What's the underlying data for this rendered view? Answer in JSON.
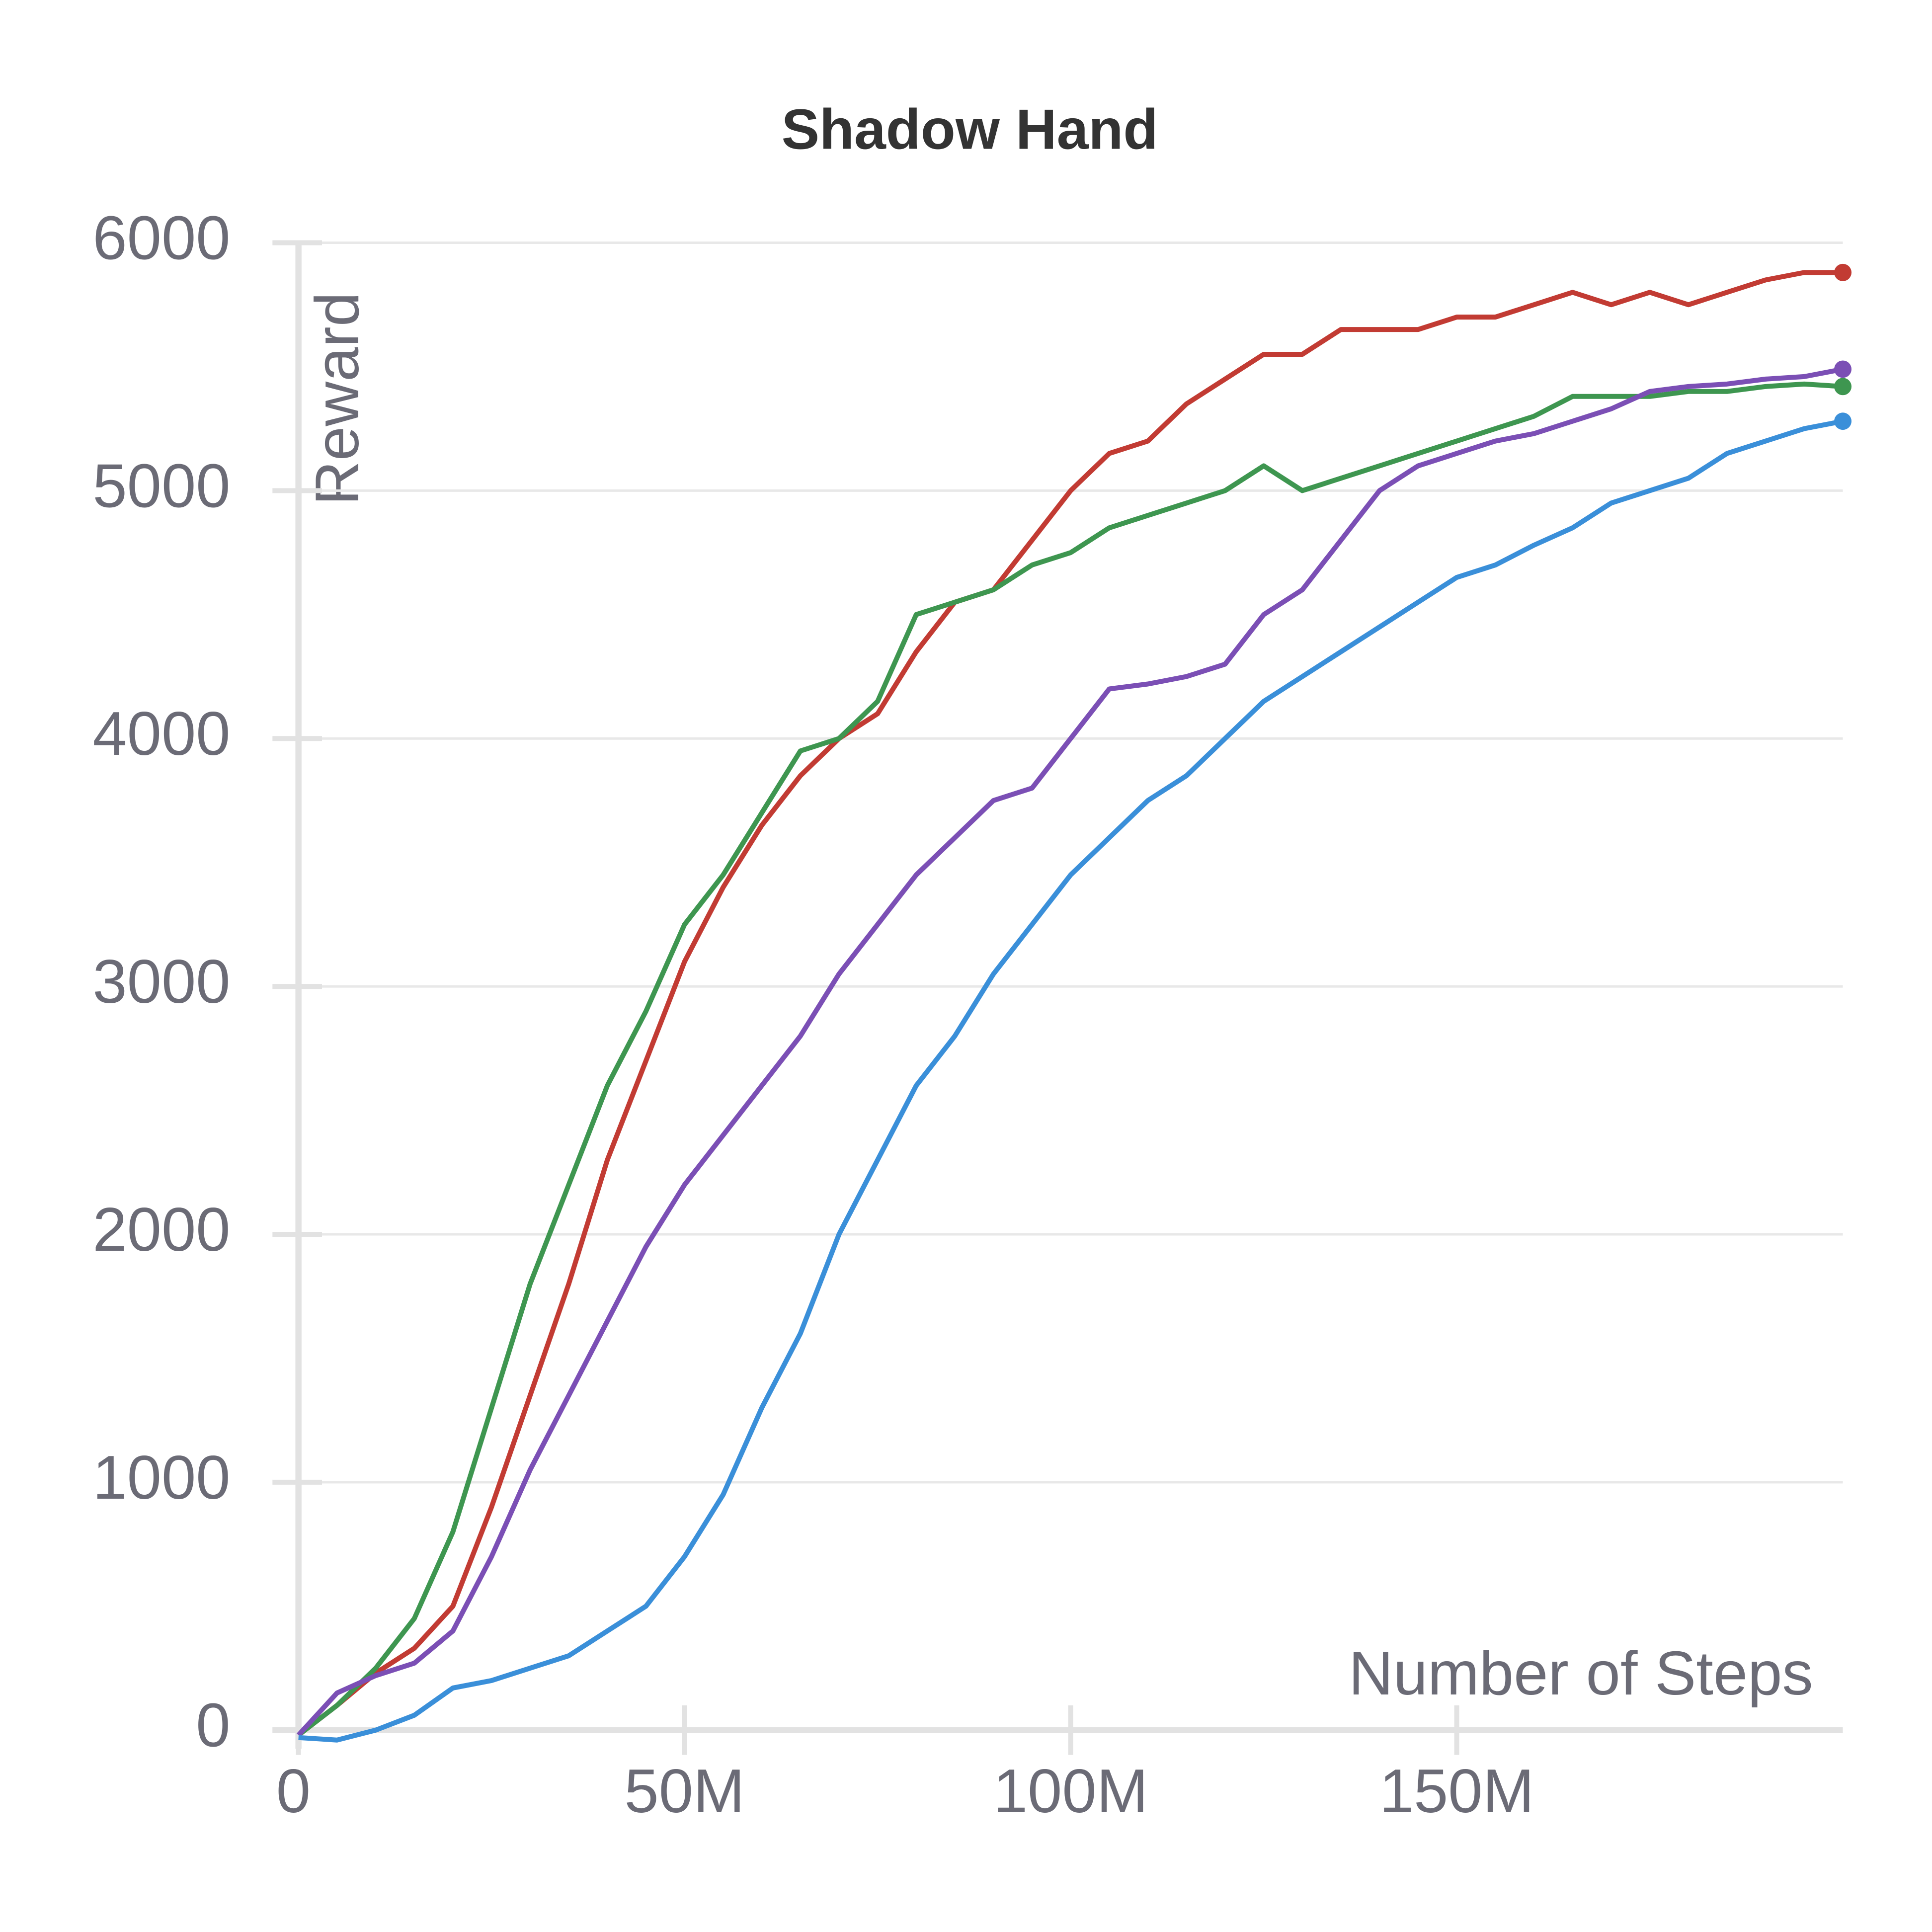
{
  "chart_data": {
    "type": "line",
    "title": "Shadow Hand",
    "x_label": "Number of Steps",
    "y_label": "Reward",
    "x": [
      0,
      5000000,
      10000000,
      15000000,
      20000000,
      25000000,
      30000000,
      35000000,
      40000000,
      45000000,
      50000000,
      55000000,
      60000000,
      65000000,
      70000000,
      75000000,
      80000000,
      85000000,
      90000000,
      95000000,
      100000000,
      105000000,
      110000000,
      115000000,
      120000000,
      125000000,
      130000000,
      135000000,
      140000000,
      145000000,
      150000000,
      155000000,
      160000000,
      165000000,
      170000000,
      175000000,
      180000000,
      185000000,
      190000000,
      195000000,
      200000000
    ],
    "series": [
      {
        "color": "#c23b33",
        "values": [
          -20,
          100,
          230,
          330,
          500,
          900,
          1350,
          1800,
          2300,
          2700,
          3100,
          3400,
          3650,
          3850,
          4000,
          4100,
          4350,
          4550,
          4600,
          4800,
          5000,
          5150,
          5200,
          5350,
          5450,
          5550,
          5550,
          5650,
          5650,
          5650,
          5700,
          5700,
          5750,
          5800,
          5750,
          5800,
          5750,
          5800,
          5850,
          5880,
          5880
        ]
      },
      {
        "color": "#3e9650",
        "values": [
          -20,
          100,
          250,
          450,
          800,
          1300,
          1800,
          2200,
          2600,
          2900,
          3250,
          3450,
          3700,
          3950,
          4000,
          4150,
          4500,
          4550,
          4600,
          4700,
          4750,
          4850,
          4900,
          4950,
          5000,
          5100,
          5000,
          5050,
          5100,
          5150,
          5200,
          5250,
          5300,
          5380,
          5380,
          5380,
          5400,
          5400,
          5420,
          5430,
          5420
        ]
      },
      {
        "color": "#7b4fb5",
        "values": [
          -20,
          150,
          220,
          270,
          400,
          700,
          1050,
          1350,
          1650,
          1950,
          2200,
          2400,
          2600,
          2800,
          3050,
          3250,
          3450,
          3600,
          3750,
          3800,
          4000,
          4200,
          4220,
          4250,
          4300,
          4500,
          4600,
          4800,
          5000,
          5100,
          5150,
          5200,
          5230,
          5280,
          5330,
          5400,
          5420,
          5430,
          5450,
          5460,
          5490
        ]
      },
      {
        "color": "#3a8fd9",
        "values": [
          -30,
          -40,
          0,
          60,
          170,
          200,
          250,
          300,
          400,
          500,
          700,
          950,
          1300,
          1600,
          2000,
          2300,
          2600,
          2800,
          3050,
          3250,
          3450,
          3600,
          3750,
          3850,
          4000,
          4150,
          4250,
          4350,
          4450,
          4550,
          4650,
          4700,
          4780,
          4850,
          4950,
          5000,
          5050,
          5150,
          5200,
          5250,
          5280
        ]
      }
    ],
    "xlim": [
      0,
      200000000
    ],
    "xticks": [
      0,
      {
        "value": 50000000,
        "label": "50M"
      },
      {
        "value": 100000000,
        "label": "100M"
      },
      {
        "value": 150000000,
        "label": "150M"
      }
    ],
    "ylim": [
      0,
      6000
    ],
    "yticks": [
      0,
      1000,
      2000,
      3000,
      4000,
      5000,
      6000
    ],
    "grid": true
  }
}
